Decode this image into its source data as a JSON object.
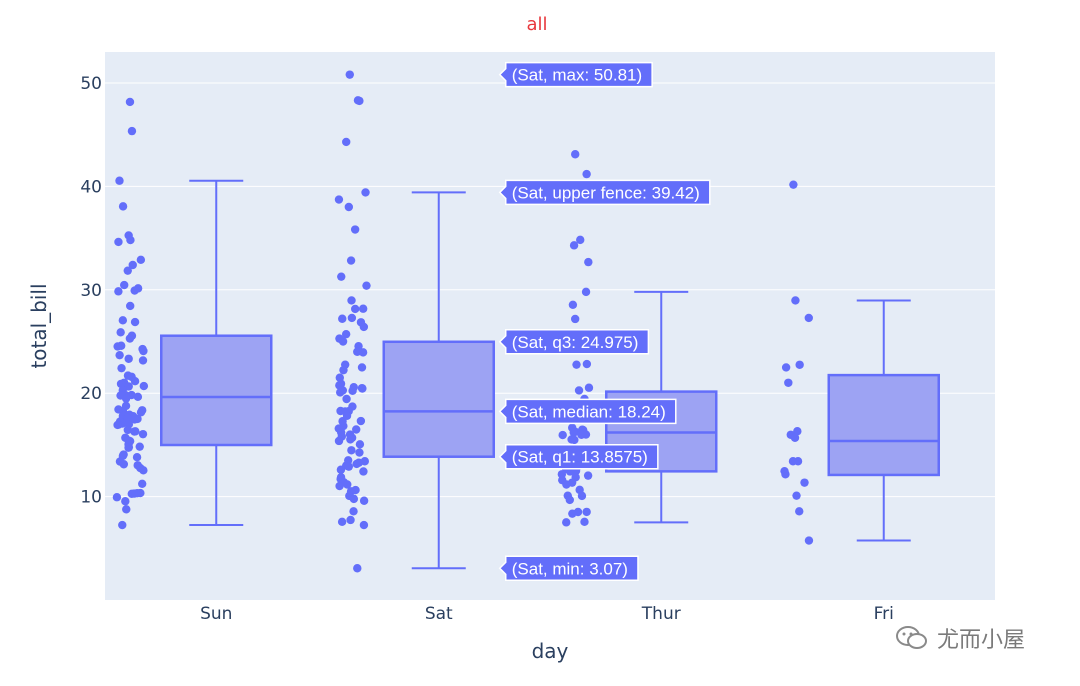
{
  "chart_data": {
    "type": "box",
    "title": "all",
    "xlabel": "day",
    "ylabel": "total_bill",
    "ylim": [
      0,
      53
    ],
    "yticks": [
      10,
      20,
      30,
      40,
      50
    ],
    "categories": [
      "Sun",
      "Sat",
      "Thur",
      "Fri"
    ],
    "boxes": [
      {
        "day": "Sun",
        "min": 7.25,
        "q1": 14.99,
        "median": 19.63,
        "q3": 25.56,
        "upper_fence": 40.55,
        "points": [
          48.17,
          45.35,
          40.55,
          38.07,
          35.26,
          34.81,
          34.63,
          32.9,
          32.4,
          31.85,
          30.46,
          30.14,
          29.93,
          29.85,
          28.44,
          27.05,
          26.88,
          25.89,
          25.56,
          25.29,
          24.59,
          24.52,
          24.27,
          24.08,
          23.68,
          23.33,
          23.17,
          22.42,
          21.7,
          21.58,
          21.16,
          21.01,
          20.9,
          20.69,
          20.65,
          20.29,
          19.82,
          19.81,
          19.77,
          19.65,
          19.49,
          18.78,
          18.43,
          18.35,
          18.29,
          18.15,
          17.92,
          17.81,
          17.78,
          17.59,
          17.51,
          17.46,
          17.26,
          17.07,
          16.99,
          16.97,
          16.93,
          16.45,
          16.31,
          16.29,
          16.04,
          15.69,
          15.42,
          15.36,
          15.04,
          14.83,
          14.78,
          14.73,
          14.07,
          13.94,
          13.81,
          13.39,
          13.13,
          13.03,
          12.76,
          12.54,
          11.24,
          10.34,
          10.33,
          10.29,
          10.27,
          9.94,
          9.55,
          8.77,
          7.25
        ]
      },
      {
        "day": "Sat",
        "min": 3.07,
        "q1": 13.8575,
        "median": 18.24,
        "q3": 24.975,
        "upper_fence": 39.42,
        "points": [
          50.81,
          48.33,
          48.27,
          44.3,
          39.42,
          38.73,
          38.01,
          35.83,
          32.83,
          31.27,
          30.4,
          28.97,
          28.17,
          28.15,
          27.28,
          27.2,
          26.86,
          26.41,
          25.71,
          25.28,
          25.0,
          24.55,
          24.06,
          24.01,
          23.95,
          22.76,
          22.49,
          22.23,
          21.5,
          20.92,
          20.76,
          20.58,
          20.49,
          20.45,
          20.27,
          20.23,
          20.08,
          19.44,
          18.71,
          18.28,
          18.26,
          18.24,
          17.82,
          17.31,
          17.29,
          16.82,
          16.58,
          16.49,
          16.21,
          16.0,
          15.81,
          15.69,
          15.53,
          15.38,
          15.06,
          14.48,
          14.26,
          13.51,
          13.42,
          13.28,
          13.16,
          13.0,
          12.9,
          12.6,
          12.43,
          11.87,
          11.69,
          11.38,
          11.17,
          11.02,
          10.63,
          10.51,
          10.07,
          9.78,
          9.6,
          8.58,
          7.74,
          7.56,
          7.25,
          3.07
        ]
      },
      {
        "day": "Thur",
        "min": 7.51,
        "q1": 12.4425,
        "median": 16.2,
        "q3": 20.155,
        "upper_fence": 29.8,
        "points": [
          43.11,
          41.19,
          34.83,
          34.3,
          32.68,
          29.8,
          28.55,
          27.18,
          25.0,
          24.71,
          22.82,
          22.76,
          20.53,
          20.27,
          19.44,
          18.71,
          18.29,
          18.28,
          17.92,
          17.47,
          16.66,
          16.47,
          16.43,
          16.27,
          16.21,
          16.0,
          15.98,
          15.95,
          15.53,
          15.48,
          14.52,
          14.31,
          13.16,
          13.0,
          12.74,
          12.66,
          12.48,
          12.43,
          12.16,
          12.03,
          11.87,
          11.59,
          11.35,
          11.17,
          10.65,
          10.09,
          10.07,
          9.68,
          8.52,
          8.51,
          8.35,
          7.56,
          7.51
        ]
      },
      {
        "day": "Fri",
        "min": 5.75,
        "q1": 12.095,
        "median": 15.38,
        "q3": 21.75,
        "upper_fence": 28.97,
        "points": [
          40.17,
          28.97,
          27.28,
          22.75,
          22.49,
          21.01,
          16.32,
          15.98,
          15.69,
          13.42,
          13.42,
          12.46,
          12.16,
          11.35,
          10.09,
          8.58,
          5.75
        ]
      }
    ],
    "hover_labels": [
      {
        "value": 50.81,
        "text": "(Sat, max: 50.81)"
      },
      {
        "value": 39.42,
        "text": "(Sat, upper fence: 39.42)"
      },
      {
        "value": 24.975,
        "text": "(Sat, q3: 24.975)"
      },
      {
        "value": 18.24,
        "text": "(Sat, median: 18.24)"
      },
      {
        "value": 13.8575,
        "text": "(Sat, q1: 13.8575)"
      },
      {
        "value": 3.07,
        "text": "(Sat, min: 3.07)"
      }
    ],
    "colors": {
      "box_fill": "#9da3f3",
      "box_line": "#636efa",
      "point": "#636efa",
      "plot_bg": "#e5ecf6",
      "grid": "#ffffff",
      "title": "#e8383d",
      "text": "#2a3f5f",
      "hover_bg": "#636efa"
    }
  },
  "watermark": {
    "text": "尤而小屋",
    "icon": "wechat-icon"
  }
}
